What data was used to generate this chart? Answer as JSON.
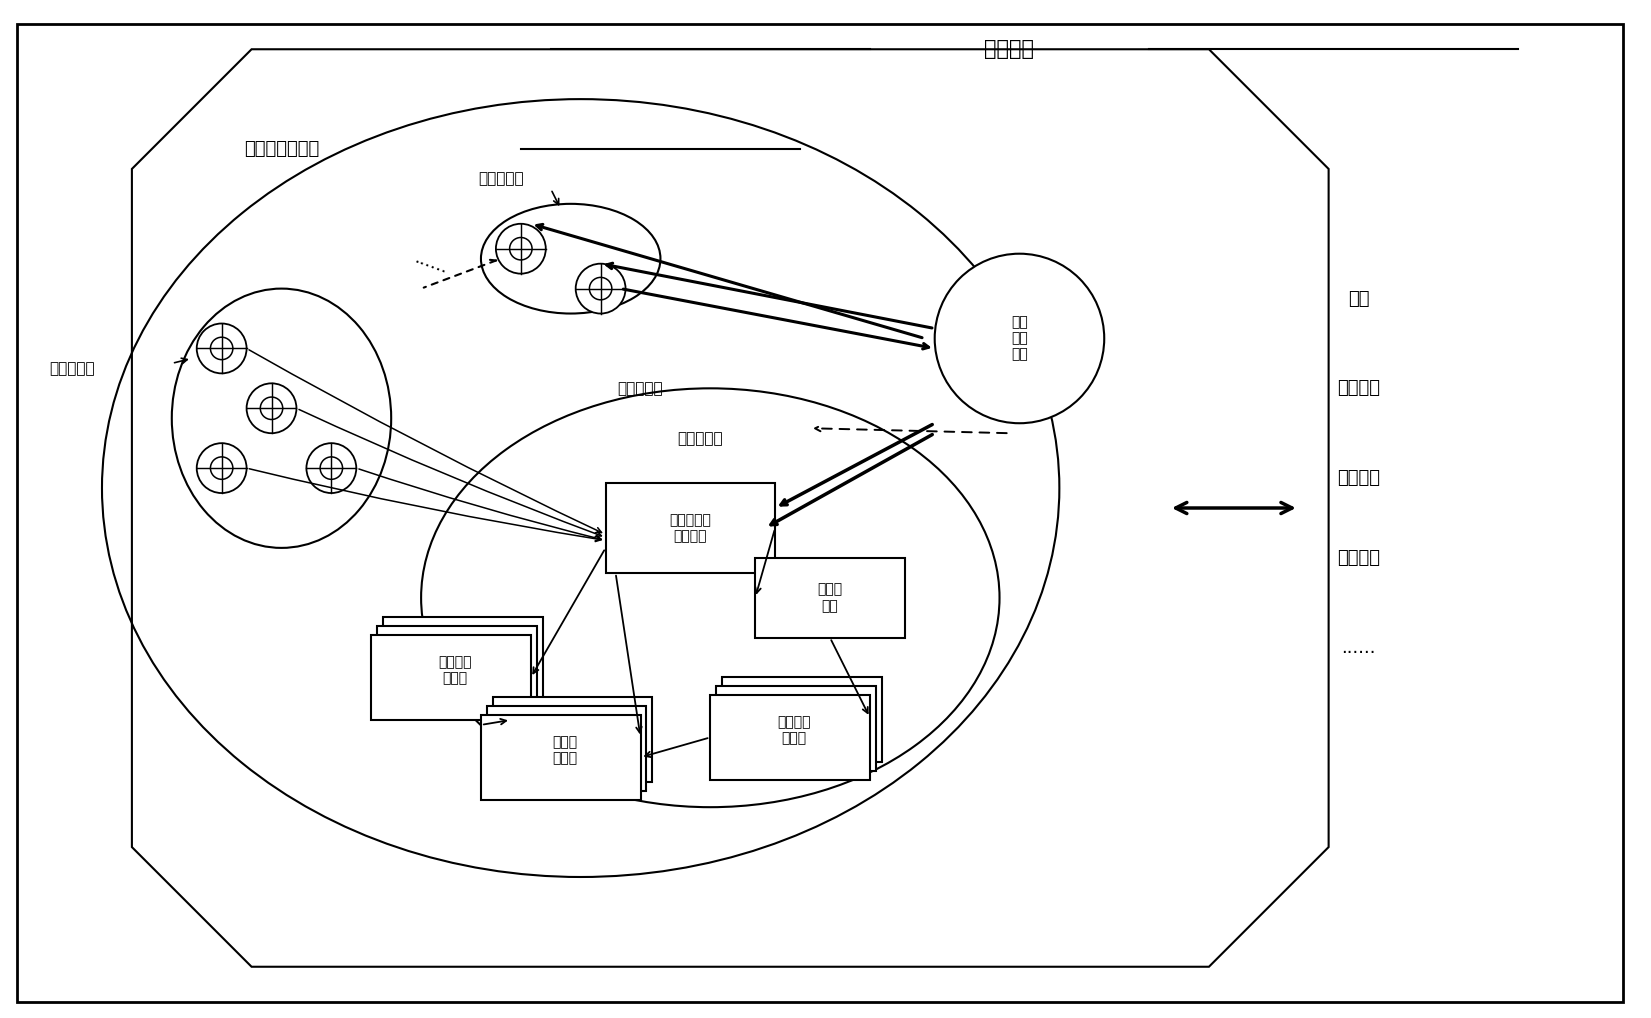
{
  "title": "装备体系",
  "subtitle_swarm": "无人机集群体系",
  "label_uav_system": "无人机系统",
  "label_comm_center": "通信\n指控\n中心",
  "label_ground_ctrl": "地面控制指\n挥分系统",
  "label_mission_equip": "任务设备\n分系统",
  "label_flight": "飞行器\n分系统",
  "label_support": "保障分\n系统",
  "label_launch": "发射回收\n分系统",
  "label_swarm_left": "无人机集群",
  "label_swarm_upper": "无人机集群",
  "label_swarm_mid": "无人机集群",
  "right_labels": [
    "卫星",
    "通信中继",
    "通信设施",
    "其他装备",
    "......"
  ],
  "bg_color": "#ffffff",
  "text_color": "#000000",
  "figsize": [
    16.51,
    10.18
  ],
  "dpi": 100
}
